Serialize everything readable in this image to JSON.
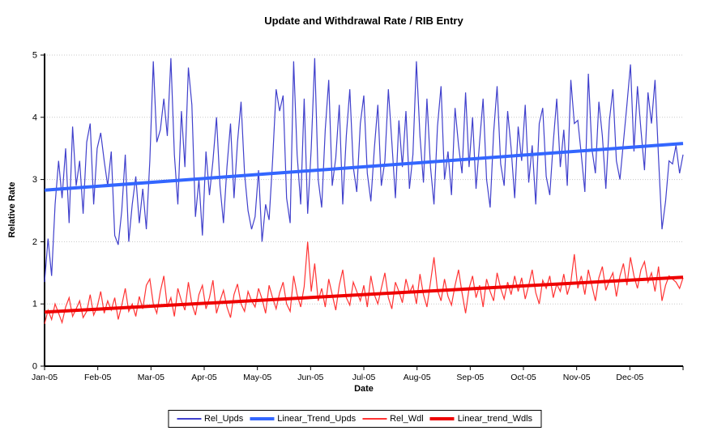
{
  "chart_data": {
    "type": "line",
    "title": "Update and Withdrawal Rate / RIB Entry",
    "xlabel": "Date",
    "ylabel": "Relative Rate",
    "ylim": [
      0,
      5
    ],
    "yticks": [
      0,
      1,
      2,
      3,
      4,
      5
    ],
    "categories": [
      "Jan-05",
      "Feb-05",
      "Mar-05",
      "Apr-05",
      "May-05",
      "Jun-05",
      "Jul-05",
      "Aug-05",
      "Sep-05",
      "Oct-05",
      "Nov-05",
      "Dec-05"
    ],
    "grid": "horizontal-dotted",
    "legend_position": "bottom-center",
    "colors": {
      "rel_upds": "#4040cc",
      "trend_upds": "#3366ff",
      "rel_wdl": "#ff3333",
      "trend_wdls": "#ee0000",
      "gridline": "#c8c8c8",
      "axis": "#000000"
    },
    "series": [
      {
        "name": "Rel_Upds",
        "type": "line",
        "color": "#4040cc",
        "width": 1.2,
        "values": [
          1.35,
          2.05,
          1.45,
          2.6,
          3.3,
          2.7,
          3.5,
          2.3,
          3.85,
          2.9,
          3.3,
          2.45,
          3.6,
          3.9,
          2.6,
          3.5,
          3.75,
          3.3,
          2.9,
          3.45,
          2.1,
          1.95,
          2.5,
          3.4,
          2.0,
          2.6,
          3.05,
          2.3,
          2.85,
          2.2,
          3.3,
          4.9,
          3.6,
          3.8,
          4.3,
          3.7,
          4.95,
          3.4,
          2.6,
          4.1,
          3.2,
          4.8,
          4.2,
          2.4,
          3.0,
          2.1,
          3.45,
          2.75,
          3.3,
          4.0,
          2.9,
          2.3,
          3.2,
          3.9,
          2.7,
          3.6,
          4.25,
          3.1,
          2.5,
          2.2,
          2.4,
          3.15,
          2.0,
          2.6,
          2.35,
          3.3,
          4.45,
          4.1,
          4.35,
          2.7,
          2.3,
          4.9,
          3.4,
          2.6,
          4.3,
          2.45,
          3.5,
          4.95,
          3.0,
          2.55,
          3.8,
          4.6,
          2.9,
          3.35,
          4.2,
          2.6,
          3.7,
          4.45,
          3.2,
          2.8,
          3.9,
          4.35,
          3.1,
          2.65,
          3.5,
          4.2,
          2.9,
          3.3,
          4.45,
          3.6,
          2.7,
          3.95,
          3.2,
          4.1,
          2.85,
          3.4,
          4.9,
          3.7,
          2.95,
          4.3,
          3.2,
          2.6,
          3.85,
          4.5,
          3.0,
          3.45,
          2.75,
          4.15,
          3.55,
          3.1,
          4.4,
          3.2,
          4.0,
          2.85,
          3.6,
          4.3,
          3.0,
          2.55,
          3.75,
          4.5,
          3.25,
          2.9,
          4.1,
          3.5,
          2.7,
          3.85,
          3.3,
          4.2,
          2.95,
          3.55,
          2.6,
          3.9,
          4.15,
          3.05,
          2.75,
          3.6,
          4.3,
          3.2,
          3.8,
          2.9,
          4.6,
          3.9,
          3.95,
          3.4,
          2.8,
          4.7,
          3.5,
          3.1,
          4.25,
          3.7,
          2.85,
          3.95,
          4.45,
          3.3,
          3.0,
          3.6,
          4.2,
          4.85,
          3.45,
          4.5,
          3.8,
          3.15,
          4.4,
          3.9,
          4.6,
          3.35,
          2.2,
          2.65,
          3.3,
          3.25,
          3.55,
          3.1,
          3.4
        ]
      },
      {
        "name": "Linear_Trend_Upds",
        "type": "trend",
        "color": "#3366ff",
        "width": 4,
        "values": [
          2.83,
          3.58
        ]
      },
      {
        "name": "Rel_Wdl",
        "type": "line",
        "color": "#ff3333",
        "width": 1.2,
        "values": [
          0.68,
          0.9,
          0.75,
          1.0,
          0.85,
          0.7,
          0.95,
          1.1,
          0.8,
          0.92,
          1.05,
          0.78,
          0.88,
          1.15,
          0.82,
          0.95,
          1.2,
          0.85,
          1.05,
          0.9,
          1.1,
          0.75,
          0.98,
          1.25,
          0.88,
          1.0,
          0.8,
          1.12,
          0.92,
          1.3,
          1.4,
          1.0,
          0.85,
          1.2,
          1.45,
          0.95,
          1.1,
          0.8,
          1.25,
          1.05,
          0.9,
          1.35,
          1.0,
          0.82,
          1.15,
          1.3,
          0.92,
          1.1,
          1.38,
          0.85,
          1.05,
          1.22,
          0.95,
          0.78,
          1.15,
          1.32,
          1.0,
          0.88,
          1.2,
          1.05,
          0.95,
          1.25,
          1.08,
          0.85,
          1.3,
          1.1,
          0.92,
          1.18,
          1.35,
          1.0,
          0.88,
          1.45,
          1.15,
          0.95,
          1.28,
          2.0,
          1.2,
          1.65,
          1.05,
          1.25,
          0.95,
          1.4,
          1.15,
          0.9,
          1.3,
          1.55,
          1.1,
          0.98,
          1.35,
          1.2,
          1.05,
          1.3,
          0.95,
          1.45,
          1.15,
          1.0,
          1.25,
          1.5,
          1.1,
          0.92,
          1.35,
          1.2,
          1.02,
          1.4,
          1.18,
          1.3,
          1.0,
          1.48,
          1.15,
          0.95,
          1.35,
          1.75,
          1.22,
          1.05,
          1.4,
          1.12,
          0.98,
          1.3,
          1.55,
          1.18,
          0.85,
          1.25,
          1.45,
          1.1,
          1.3,
          0.95,
          1.4,
          1.2,
          1.05,
          1.5,
          1.25,
          1.08,
          1.35,
          1.15,
          1.45,
          1.2,
          1.42,
          1.08,
          1.3,
          1.55,
          1.18,
          1.0,
          1.38,
          1.25,
          1.45,
          1.1,
          1.32,
          1.2,
          1.48,
          1.15,
          1.35,
          1.8,
          1.25,
          1.45,
          1.15,
          1.55,
          1.3,
          1.05,
          1.42,
          1.6,
          1.22,
          1.38,
          1.5,
          1.12,
          1.45,
          1.65,
          1.3,
          1.75,
          1.45,
          1.25,
          1.55,
          1.68,
          1.35,
          1.5,
          1.2,
          1.6,
          1.05,
          1.3,
          1.45,
          1.4,
          1.35,
          1.25,
          1.42
        ]
      },
      {
        "name": "Linear_trend_Wdls",
        "type": "trend",
        "color": "#ee0000",
        "width": 4,
        "values": [
          0.87,
          1.43
        ]
      }
    ]
  }
}
